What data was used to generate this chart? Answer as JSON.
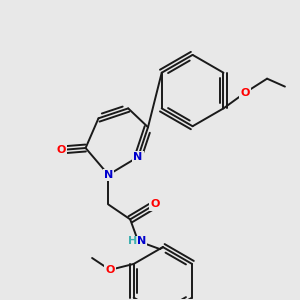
{
  "bg_color": "#e8e8e8",
  "bond_color": "#1a1a1a",
  "atom_colors": {
    "N": "#0000cd",
    "O": "#ff0000",
    "H": "#40b0b0",
    "C": "#1a1a1a"
  },
  "line_width": 1.4,
  "font_size": 8.0
}
